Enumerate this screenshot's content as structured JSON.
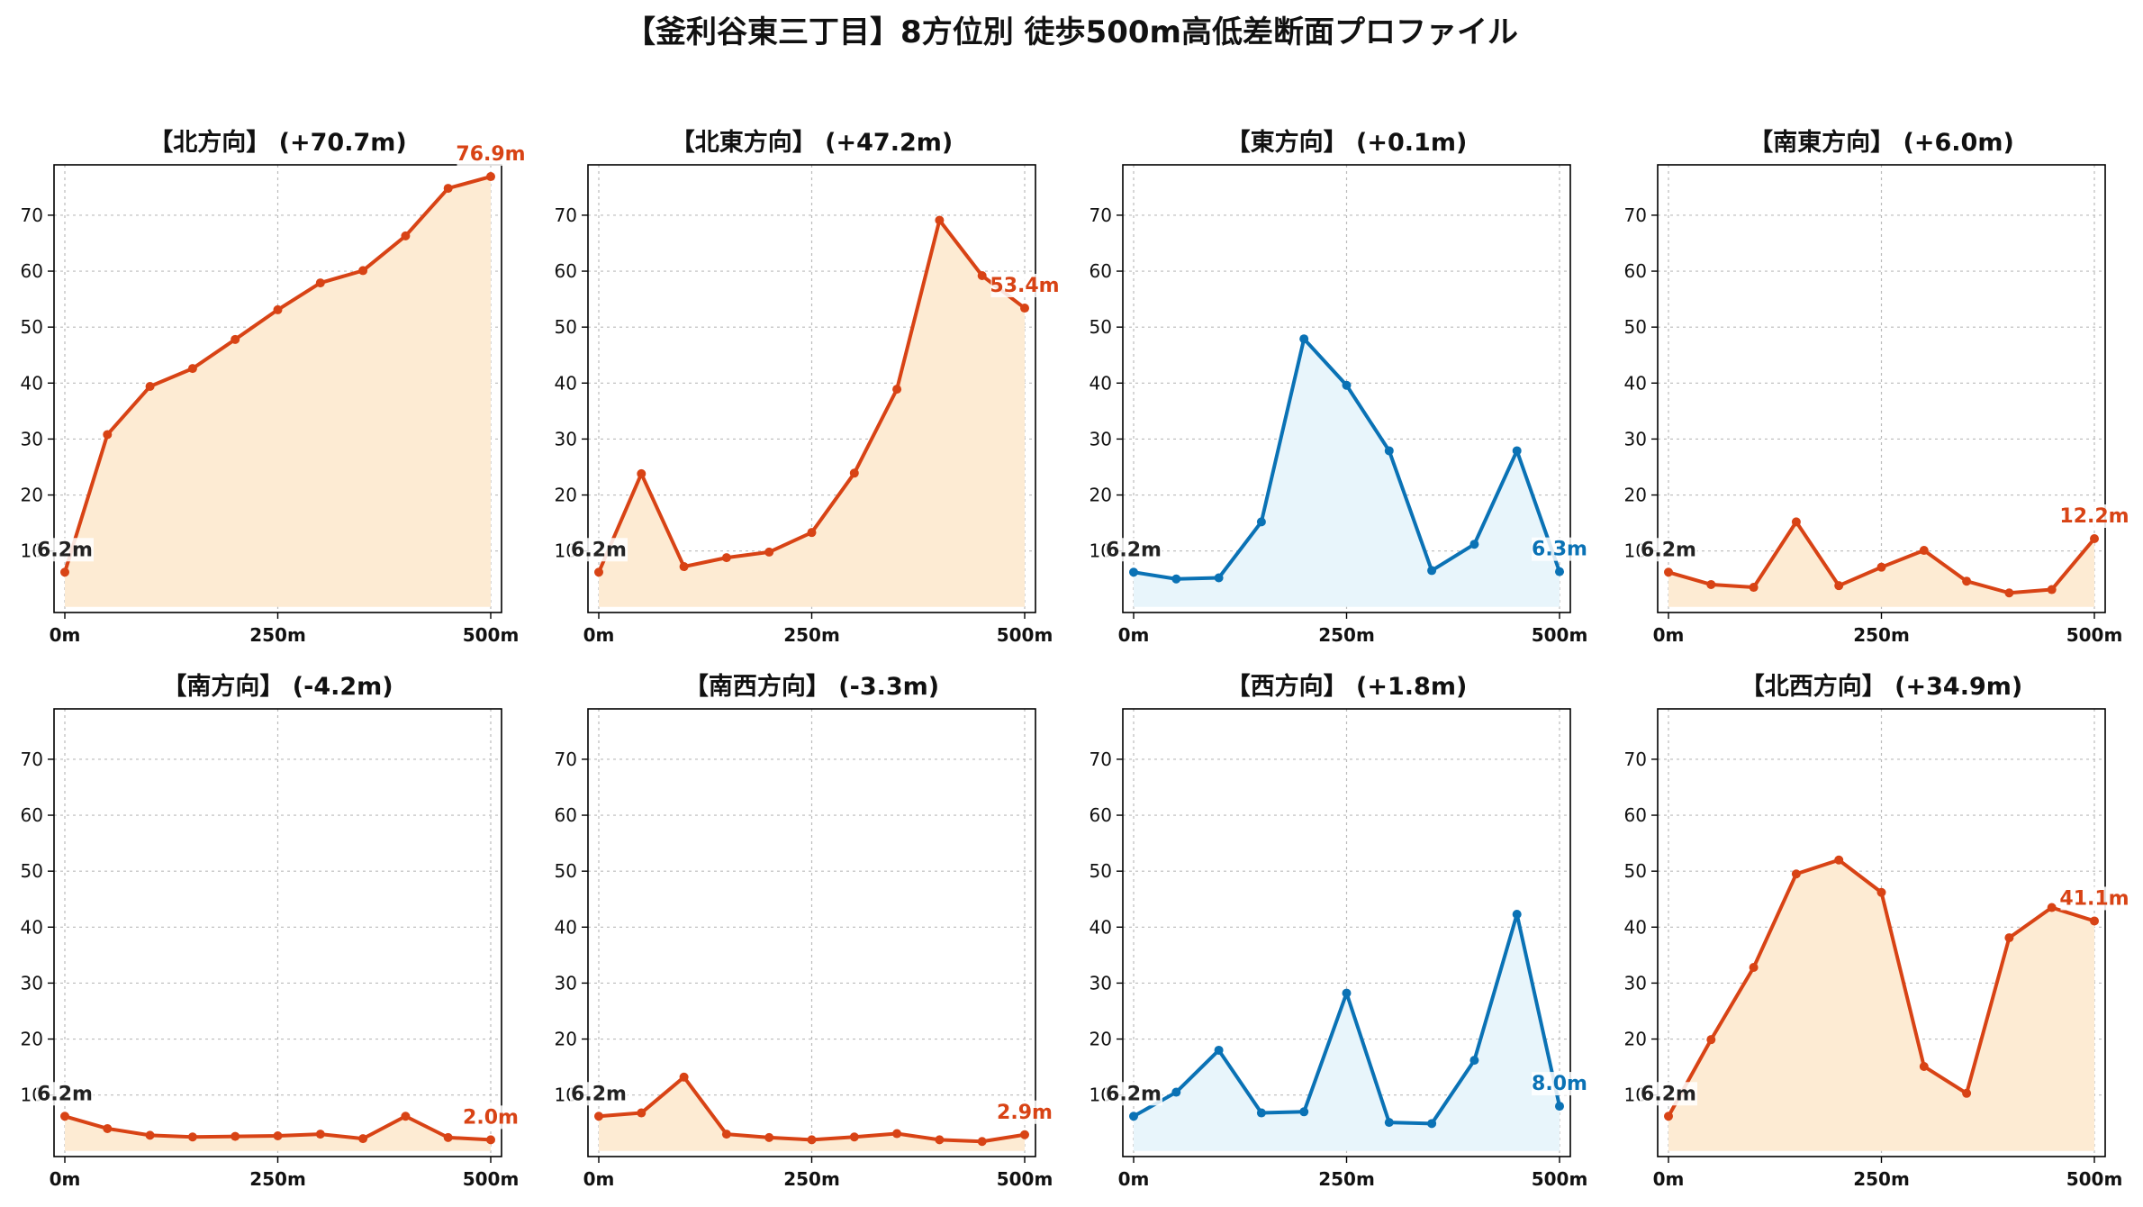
{
  "title": "【釜利谷東三丁目】8方位別 徒歩500m高低差断面プロファイル",
  "colors": {
    "up": "#D84315",
    "up_fill": "#FDEBD3",
    "flat": "#0A72B5",
    "flat_fill": "#E8F5FB",
    "grid": "#BBBBBB",
    "axis": "#000000"
  },
  "chart_data": [
    {
      "type": "area",
      "title": "【北方向】 (+70.7m)",
      "color_scheme": "up",
      "x": [
        0,
        50,
        100,
        150,
        200,
        250,
        300,
        350,
        400,
        450,
        500
      ],
      "values": [
        6.2,
        30.8,
        39.4,
        42.6,
        47.8,
        53.1,
        57.9,
        60.1,
        66.3,
        74.8,
        76.9
      ],
      "start_label": "6.2m",
      "end_label": "76.9m",
      "xticks": [
        "0m",
        "250m",
        "500m"
      ],
      "yticks": [
        "10",
        "20",
        "30",
        "40",
        "50",
        "60",
        "70"
      ],
      "ylim": [
        -1,
        79
      ],
      "grid": true
    },
    {
      "type": "area",
      "title": "【北東方向】 (+47.2m)",
      "color_scheme": "up",
      "x": [
        0,
        50,
        100,
        150,
        200,
        250,
        300,
        350,
        400,
        450,
        500
      ],
      "values": [
        6.2,
        23.8,
        7.2,
        8.8,
        9.8,
        13.3,
        23.9,
        38.9,
        69.1,
        59.2,
        53.4
      ],
      "start_label": "6.2m",
      "end_label": "53.4m",
      "xticks": [
        "0m",
        "250m",
        "500m"
      ],
      "yticks": [
        "10",
        "20",
        "30",
        "40",
        "50",
        "60",
        "70"
      ],
      "ylim": [
        -1,
        79
      ],
      "grid": true
    },
    {
      "type": "area",
      "title": "【東方向】 (+0.1m)",
      "color_scheme": "flat",
      "x": [
        0,
        50,
        100,
        150,
        200,
        250,
        300,
        350,
        400,
        450,
        500
      ],
      "values": [
        6.2,
        5.0,
        5.2,
        15.2,
        47.9,
        39.6,
        27.9,
        6.5,
        11.2,
        27.9,
        6.3
      ],
      "start_label": "6.2m",
      "end_label": "6.3m",
      "xticks": [
        "0m",
        "250m",
        "500m"
      ],
      "yticks": [
        "10",
        "20",
        "30",
        "40",
        "50",
        "60",
        "70"
      ],
      "ylim": [
        -1,
        79
      ],
      "grid": true
    },
    {
      "type": "area",
      "title": "【南東方向】 (+6.0m)",
      "color_scheme": "up",
      "x": [
        0,
        50,
        100,
        150,
        200,
        250,
        300,
        350,
        400,
        450,
        500
      ],
      "values": [
        6.2,
        4.0,
        3.5,
        15.2,
        3.8,
        7.1,
        10.1,
        4.6,
        2.5,
        3.1,
        12.2
      ],
      "start_label": "6.2m",
      "end_label": "12.2m",
      "xticks": [
        "0m",
        "250m",
        "500m"
      ],
      "yticks": [
        "10",
        "20",
        "30",
        "40",
        "50",
        "60",
        "70"
      ],
      "ylim": [
        -1,
        79
      ],
      "grid": true
    },
    {
      "type": "area",
      "title": "【南方向】 (-4.2m)",
      "color_scheme": "up",
      "x": [
        0,
        50,
        100,
        150,
        200,
        250,
        300,
        350,
        400,
        450,
        500
      ],
      "values": [
        6.2,
        4.0,
        2.8,
        2.5,
        2.6,
        2.7,
        3.0,
        2.2,
        6.2,
        2.4,
        2.0
      ],
      "start_label": "6.2m",
      "end_label": "2.0m",
      "xticks": [
        "0m",
        "250m",
        "500m"
      ],
      "yticks": [
        "10",
        "20",
        "30",
        "40",
        "50",
        "60",
        "70"
      ],
      "ylim": [
        -1,
        79
      ],
      "grid": true
    },
    {
      "type": "area",
      "title": "【南西方向】 (-3.3m)",
      "color_scheme": "up",
      "x": [
        0,
        50,
        100,
        150,
        200,
        250,
        300,
        350,
        400,
        450,
        500
      ],
      "values": [
        6.2,
        6.8,
        13.2,
        3.0,
        2.4,
        2.0,
        2.5,
        3.1,
        2.0,
        1.7,
        2.9
      ],
      "start_label": "6.2m",
      "end_label": "2.9m",
      "xticks": [
        "0m",
        "250m",
        "500m"
      ],
      "yticks": [
        "10",
        "20",
        "30",
        "40",
        "50",
        "60",
        "70"
      ],
      "ylim": [
        -1,
        79
      ],
      "grid": true
    },
    {
      "type": "area",
      "title": "【西方向】 (+1.8m)",
      "color_scheme": "flat",
      "x": [
        0,
        50,
        100,
        150,
        200,
        250,
        300,
        350,
        400,
        450,
        500
      ],
      "values": [
        6.2,
        10.5,
        18.0,
        6.8,
        7.0,
        28.2,
        5.1,
        4.9,
        16.2,
        42.3,
        8.0
      ],
      "start_label": "6.2m",
      "end_label": "8.0m",
      "xticks": [
        "0m",
        "250m",
        "500m"
      ],
      "yticks": [
        "10",
        "20",
        "30",
        "40",
        "50",
        "60",
        "70"
      ],
      "ylim": [
        -1,
        79
      ],
      "grid": true
    },
    {
      "type": "area",
      "title": "【北西方向】 (+34.9m)",
      "color_scheme": "up",
      "x": [
        0,
        50,
        100,
        150,
        200,
        250,
        300,
        350,
        400,
        450,
        500
      ],
      "values": [
        6.2,
        19.9,
        32.8,
        49.5,
        52.0,
        46.2,
        15.1,
        10.3,
        38.1,
        43.5,
        41.1
      ],
      "start_label": "6.2m",
      "end_label": "41.1m",
      "xticks": [
        "0m",
        "250m",
        "500m"
      ],
      "yticks": [
        "10",
        "20",
        "30",
        "40",
        "50",
        "60",
        "70"
      ],
      "ylim": [
        -1,
        79
      ],
      "grid": true
    }
  ]
}
